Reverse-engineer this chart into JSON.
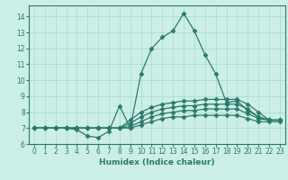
{
  "xlabel": "Humidex (Indice chaleur)",
  "background_color": "#cceee8",
  "grid_color": "#aaddcc",
  "line_color": "#2a7a68",
  "xlim": [
    -0.5,
    23.5
  ],
  "ylim": [
    6,
    14.7
  ],
  "xticks": [
    0,
    1,
    2,
    3,
    4,
    5,
    6,
    7,
    8,
    9,
    10,
    11,
    12,
    13,
    14,
    15,
    16,
    17,
    18,
    19,
    20,
    21,
    22,
    23
  ],
  "yticks": [
    6,
    7,
    8,
    9,
    10,
    11,
    12,
    13,
    14
  ],
  "lines": [
    {
      "x": [
        0,
        1,
        2,
        3,
        4,
        5,
        6,
        7,
        8,
        9,
        10,
        11,
        12,
        13,
        14,
        15,
        16,
        17,
        18,
        19,
        20,
        21,
        22,
        23
      ],
      "y": [
        7.0,
        7.0,
        7.0,
        7.0,
        6.9,
        6.5,
        6.4,
        6.8,
        8.4,
        7.0,
        10.4,
        12.0,
        12.7,
        13.1,
        14.2,
        13.1,
        11.6,
        10.4,
        8.6,
        8.7,
        8.1,
        7.7,
        7.5,
        7.5
      ]
    },
    {
      "x": [
        0,
        1,
        2,
        3,
        4,
        5,
        6,
        7,
        8,
        9,
        10,
        11,
        12,
        13,
        14,
        15,
        16,
        17,
        18,
        19,
        20,
        21,
        22,
        23
      ],
      "y": [
        7.0,
        7.0,
        7.0,
        7.0,
        7.0,
        7.0,
        7.0,
        7.0,
        7.0,
        7.5,
        8.0,
        8.3,
        8.5,
        8.6,
        8.7,
        8.7,
        8.8,
        8.8,
        8.8,
        8.8,
        8.5,
        8.0,
        7.5,
        7.5
      ]
    },
    {
      "x": [
        0,
        1,
        2,
        3,
        4,
        5,
        6,
        7,
        8,
        9,
        10,
        11,
        12,
        13,
        14,
        15,
        16,
        17,
        18,
        19,
        20,
        21,
        22,
        23
      ],
      "y": [
        7.0,
        7.0,
        7.0,
        7.0,
        7.0,
        7.0,
        7.0,
        7.0,
        7.0,
        7.3,
        7.7,
        8.0,
        8.2,
        8.3,
        8.4,
        8.4,
        8.5,
        8.5,
        8.5,
        8.5,
        8.2,
        7.7,
        7.5,
        7.5
      ]
    },
    {
      "x": [
        0,
        1,
        2,
        3,
        4,
        5,
        6,
        7,
        8,
        9,
        10,
        11,
        12,
        13,
        14,
        15,
        16,
        17,
        18,
        19,
        20,
        21,
        22,
        23
      ],
      "y": [
        7.0,
        7.0,
        7.0,
        7.0,
        7.0,
        7.0,
        7.0,
        7.0,
        7.0,
        7.1,
        7.4,
        7.7,
        7.9,
        8.0,
        8.1,
        8.1,
        8.2,
        8.2,
        8.2,
        8.2,
        7.9,
        7.6,
        7.5,
        7.5
      ]
    },
    {
      "x": [
        0,
        1,
        2,
        3,
        4,
        5,
        6,
        7,
        8,
        9,
        10,
        11,
        12,
        13,
        14,
        15,
        16,
        17,
        18,
        19,
        20,
        21,
        22,
        23
      ],
      "y": [
        7.0,
        7.0,
        7.0,
        7.0,
        7.0,
        7.0,
        7.0,
        7.0,
        7.0,
        7.0,
        7.2,
        7.4,
        7.6,
        7.7,
        7.7,
        7.8,
        7.8,
        7.8,
        7.8,
        7.8,
        7.6,
        7.4,
        7.4,
        7.4
      ]
    }
  ],
  "marker": "D",
  "markersize": 2.5,
  "linewidth": 0.9,
  "axis_fontsize": 6.5,
  "tick_fontsize": 5.5
}
